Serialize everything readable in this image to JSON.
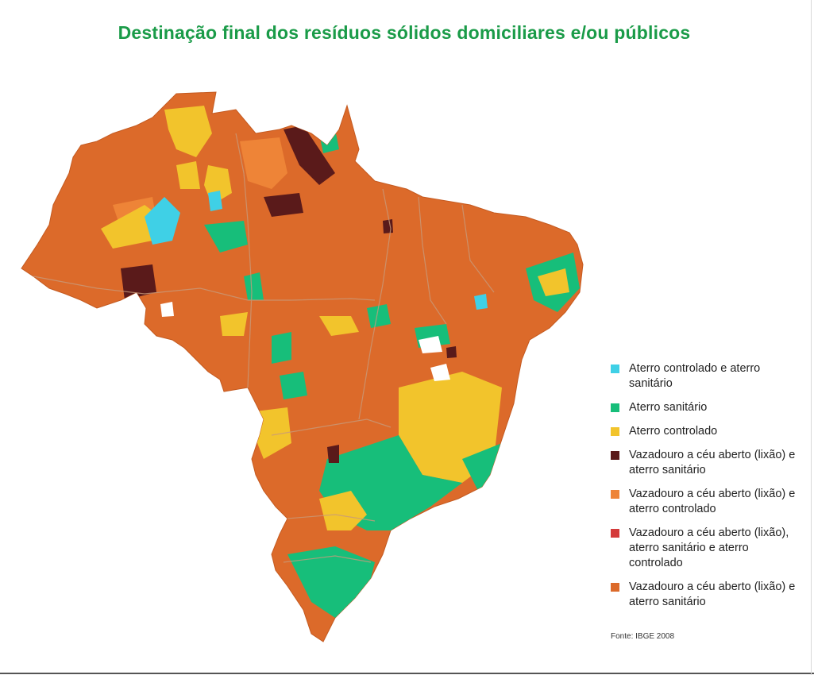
{
  "title": "Destinação final dos resíduos sólidos domiciliares e/ou públicos",
  "colors": {
    "title": "#1a9b48",
    "aterro_controlado_e_sanitario": "#3fd0e6",
    "aterro_sanitario": "#17be7a",
    "aterro_controlado": "#f2c42c",
    "lixao_e_sanitario_dark": "#5a1a1a",
    "lixao_e_controlado": "#ee8437",
    "lixao_sanitario_controlado": "#d43a3a",
    "lixao_e_sanitario": "#dc6a2a",
    "border": "#c08060"
  },
  "legend": {
    "items": [
      {
        "label": "Aterro controlado e  aterro sanitário",
        "color": "#3fd0e6"
      },
      {
        "label": "Aterro sanitário",
        "color": "#17be7a"
      },
      {
        "label": "Aterro controlado",
        "color": "#f2c42c"
      },
      {
        "label": "Vazadouro a céu aberto (lixão) e aterro sanitário",
        "color": "#5a1a1a"
      },
      {
        "label": "Vazadouro a céu aberto (lixão) e aterro controlado",
        "color": "#ee8437"
      },
      {
        "label": "Vazadouro a céu aberto (lixão), aterro sanitário e aterro controlado",
        "color": "#d43a3a"
      },
      {
        "label": "Vazadouro a céu aberto (lixão) e aterro sanitário",
        "color": "#dc6a2a"
      }
    ]
  },
  "source": "Fonte: IBGE 2008"
}
